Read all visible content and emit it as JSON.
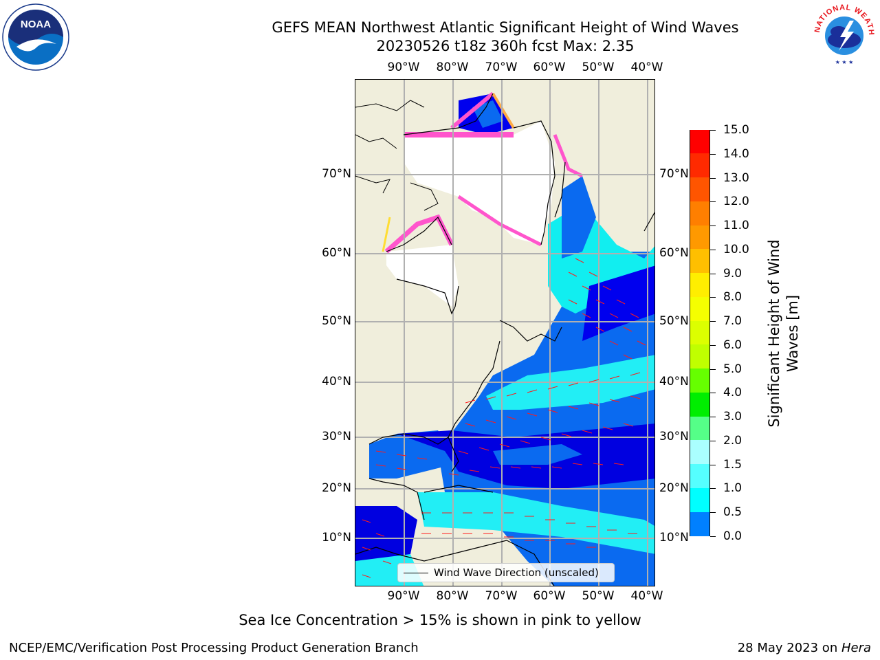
{
  "title_line1": "GEFS MEAN Northwest Atlantic Significant Height of Wind Waves",
  "title_line2": "20230526 t18z 360h fcst   Max: 2.35",
  "lon_ticks": [
    "90°W",
    "80°W",
    "70°W",
    "60°W",
    "50°W",
    "40°W"
  ],
  "lat_ticks": [
    "70°N",
    "60°N",
    "50°N",
    "40°N",
    "30°N",
    "20°N",
    "10°N"
  ],
  "colorbar": {
    "title_line1": "Significant Height of Wind",
    "title_line2": "Waves [m]",
    "levels": [
      "15.0",
      "14.0",
      "13.0",
      "12.0",
      "11.0",
      "10.0",
      "9.0",
      "8.0",
      "7.0",
      "6.0",
      "5.0",
      "4.0",
      "3.0",
      "2.0",
      "1.5",
      "1.0",
      "0.5",
      "0.0"
    ],
    "colors": [
      "#ff0000",
      "#ff2a00",
      "#ff5500",
      "#ff7f00",
      "#ff9900",
      "#ffbf00",
      "#ffee00",
      "#f5ff00",
      "#dcff00",
      "#c0ff00",
      "#66ff00",
      "#00ee00",
      "#55ff88",
      "#aaffff",
      "#55ffff",
      "#00ffff",
      "#0080ff",
      "#0000ff"
    ]
  },
  "legend_label": "Wind Wave Direction (unscaled)",
  "note": "Sea Ice Concentration > 15% is shown in pink to yellow",
  "footer_left": "NCEP/EMC/Verification Post Processing Product Generation Branch",
  "footer_right_prefix": "28 May 2023 on ",
  "footer_right_host": "Hera",
  "logos": {
    "left_text": "NOAA",
    "right_text": "NATIONAL WEATHER SERVICE"
  }
}
